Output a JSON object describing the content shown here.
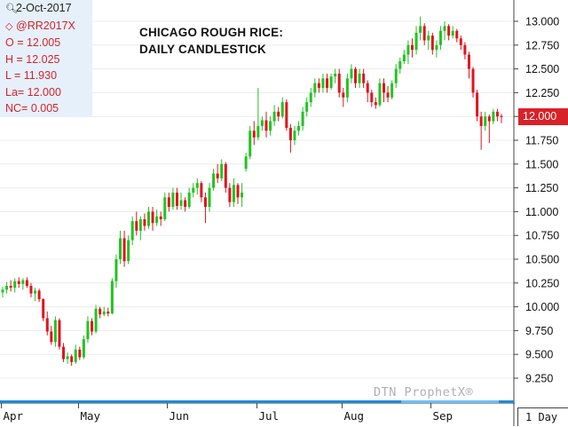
{
  "info_box": {
    "date": "2-Oct-2017",
    "symbol": "@RR2017X",
    "open": "O = 12.005",
    "high": "H = 12.025",
    "low": "L = 11.930",
    "last": "La= 12.000",
    "net_change": "NC= 0.005"
  },
  "watermark": "DTN ProphetX®",
  "price_tag": "12.000",
  "period_label": "1 Day",
  "colors": {
    "up": "#22c322",
    "down": "#e0141e",
    "tag": "#d8222a",
    "axis_highlight": "#69bfff",
    "info_bg": "#e6f0fa"
  },
  "chart_data": {
    "type": "candlestick",
    "title": "CHICAGO ROUGH RICE:",
    "subtitle": "DAILY CANDLESTICK",
    "ylim": [
      9.05,
      13.2
    ],
    "y_ticks": [
      "13.000",
      "12.750",
      "12.500",
      "12.250",
      "12.000",
      "11.750",
      "11.500",
      "11.250",
      "11.000",
      "10.750",
      "10.500",
      "10.250",
      "10.000",
      "9.750",
      "9.500",
      "9.250"
    ],
    "x_ticks": [
      "Apr",
      "May",
      "Jun",
      "Jul",
      "Aug",
      "Sep"
    ],
    "current_price": 12.0,
    "candles": [
      {
        "o": 10.15,
        "h": 10.21,
        "l": 10.1,
        "c": 10.18
      },
      {
        "o": 10.18,
        "h": 10.26,
        "l": 10.14,
        "c": 10.22
      },
      {
        "o": 10.22,
        "h": 10.28,
        "l": 10.16,
        "c": 10.2
      },
      {
        "o": 10.2,
        "h": 10.3,
        "l": 10.15,
        "c": 10.27
      },
      {
        "o": 10.27,
        "h": 10.31,
        "l": 10.2,
        "c": 10.24
      },
      {
        "o": 10.24,
        "h": 10.3,
        "l": 10.18,
        "c": 10.28
      },
      {
        "o": 10.28,
        "h": 10.31,
        "l": 10.2,
        "c": 10.22
      },
      {
        "o": 10.22,
        "h": 10.25,
        "l": 10.1,
        "c": 10.14
      },
      {
        "o": 10.14,
        "h": 10.2,
        "l": 10.06,
        "c": 10.17
      },
      {
        "o": 10.17,
        "h": 10.19,
        "l": 10.05,
        "c": 10.08
      },
      {
        "o": 10.08,
        "h": 10.09,
        "l": 9.85,
        "c": 9.88
      },
      {
        "o": 9.88,
        "h": 9.95,
        "l": 9.7,
        "c": 9.74
      },
      {
        "o": 9.74,
        "h": 9.8,
        "l": 9.6,
        "c": 9.63
      },
      {
        "o": 9.63,
        "h": 9.9,
        "l": 9.58,
        "c": 9.86
      },
      {
        "o": 9.86,
        "h": 9.88,
        "l": 9.55,
        "c": 9.58
      },
      {
        "o": 9.58,
        "h": 9.62,
        "l": 9.42,
        "c": 9.45
      },
      {
        "o": 9.45,
        "h": 9.52,
        "l": 9.4,
        "c": 9.48
      },
      {
        "o": 9.48,
        "h": 9.5,
        "l": 9.38,
        "c": 9.42
      },
      {
        "o": 9.42,
        "h": 9.6,
        "l": 9.4,
        "c": 9.55
      },
      {
        "o": 9.55,
        "h": 9.58,
        "l": 9.44,
        "c": 9.47
      },
      {
        "o": 9.47,
        "h": 9.7,
        "l": 9.45,
        "c": 9.66
      },
      {
        "o": 9.66,
        "h": 9.9,
        "l": 9.62,
        "c": 9.85
      },
      {
        "o": 9.85,
        "h": 9.88,
        "l": 9.7,
        "c": 9.74
      },
      {
        "o": 9.74,
        "h": 10.02,
        "l": 9.72,
        "c": 9.98
      },
      {
        "o": 9.98,
        "h": 10.0,
        "l": 9.88,
        "c": 9.92
      },
      {
        "o": 9.92,
        "h": 10.0,
        "l": 9.9,
        "c": 9.95
      },
      {
        "o": 9.95,
        "h": 9.99,
        "l": 9.9,
        "c": 9.93
      },
      {
        "o": 9.93,
        "h": 10.3,
        "l": 9.92,
        "c": 10.27
      },
      {
        "o": 10.27,
        "h": 10.55,
        "l": 10.2,
        "c": 10.5
      },
      {
        "o": 10.5,
        "h": 10.8,
        "l": 10.45,
        "c": 10.72
      },
      {
        "o": 10.72,
        "h": 10.8,
        "l": 10.42,
        "c": 10.48
      },
      {
        "o": 10.48,
        "h": 10.75,
        "l": 10.45,
        "c": 10.7
      },
      {
        "o": 10.7,
        "h": 10.95,
        "l": 10.65,
        "c": 10.9
      },
      {
        "o": 10.9,
        "h": 11.0,
        "l": 10.75,
        "c": 10.8
      },
      {
        "o": 10.8,
        "h": 10.95,
        "l": 10.7,
        "c": 10.92
      },
      {
        "o": 10.92,
        "h": 10.98,
        "l": 10.8,
        "c": 10.85
      },
      {
        "o": 10.85,
        "h": 11.05,
        "l": 10.82,
        "c": 11.0
      },
      {
        "o": 11.0,
        "h": 11.05,
        "l": 10.8,
        "c": 10.88
      },
      {
        "o": 10.88,
        "h": 11.02,
        "l": 10.85,
        "c": 10.95
      },
      {
        "o": 10.95,
        "h": 11.0,
        "l": 10.85,
        "c": 10.92
      },
      {
        "o": 10.92,
        "h": 11.2,
        "l": 10.9,
        "c": 11.15
      },
      {
        "o": 11.15,
        "h": 11.2,
        "l": 11.0,
        "c": 11.05
      },
      {
        "o": 11.05,
        "h": 11.25,
        "l": 11.02,
        "c": 11.2
      },
      {
        "o": 11.2,
        "h": 11.25,
        "l": 11.02,
        "c": 11.06
      },
      {
        "o": 11.06,
        "h": 11.2,
        "l": 11.02,
        "c": 11.12
      },
      {
        "o": 11.12,
        "h": 11.15,
        "l": 11.0,
        "c": 11.05
      },
      {
        "o": 11.05,
        "h": 11.25,
        "l": 11.03,
        "c": 11.2
      },
      {
        "o": 11.2,
        "h": 11.3,
        "l": 11.15,
        "c": 11.25
      },
      {
        "o": 11.25,
        "h": 11.35,
        "l": 11.18,
        "c": 11.3
      },
      {
        "o": 11.3,
        "h": 11.32,
        "l": 11.1,
        "c": 11.15
      },
      {
        "o": 11.15,
        "h": 11.2,
        "l": 10.88,
        "c": 11.05
      },
      {
        "o": 11.05,
        "h": 11.3,
        "l": 11.0,
        "c": 11.25
      },
      {
        "o": 11.25,
        "h": 11.45,
        "l": 11.22,
        "c": 11.4
      },
      {
        "o": 11.4,
        "h": 11.5,
        "l": 11.3,
        "c": 11.35
      },
      {
        "o": 11.35,
        "h": 11.55,
        "l": 11.32,
        "c": 11.5
      },
      {
        "o": 11.5,
        "h": 11.52,
        "l": 11.2,
        "c": 11.25
      },
      {
        "o": 11.25,
        "h": 11.3,
        "l": 11.05,
        "c": 11.1
      },
      {
        "o": 11.1,
        "h": 11.35,
        "l": 11.05,
        "c": 11.28
      },
      {
        "o": 11.28,
        "h": 11.3,
        "l": 11.08,
        "c": 11.15
      },
      {
        "o": 11.15,
        "h": 11.3,
        "l": 11.05,
        "c": 11.2
      },
      {
        "o": 11.45,
        "h": 11.62,
        "l": 11.42,
        "c": 11.58
      },
      {
        "o": 11.58,
        "h": 11.9,
        "l": 11.55,
        "c": 11.85
      },
      {
        "o": 11.85,
        "h": 11.95,
        "l": 11.7,
        "c": 11.78
      },
      {
        "o": 11.78,
        "h": 12.3,
        "l": 11.75,
        "c": 11.9
      },
      {
        "o": 11.9,
        "h": 12.0,
        "l": 11.85,
        "c": 11.96
      },
      {
        "o": 11.96,
        "h": 12.05,
        "l": 11.78,
        "c": 11.85
      },
      {
        "o": 11.85,
        "h": 12.0,
        "l": 11.8,
        "c": 11.95
      },
      {
        "o": 11.95,
        "h": 12.12,
        "l": 11.9,
        "c": 12.05
      },
      {
        "o": 12.05,
        "h": 12.1,
        "l": 11.95,
        "c": 12.0
      },
      {
        "o": 12.0,
        "h": 12.2,
        "l": 11.98,
        "c": 12.15
      },
      {
        "o": 12.15,
        "h": 12.18,
        "l": 11.85,
        "c": 11.88
      },
      {
        "o": 11.88,
        "h": 11.92,
        "l": 11.62,
        "c": 11.75
      },
      {
        "o": 11.75,
        "h": 11.9,
        "l": 11.7,
        "c": 11.85
      },
      {
        "o": 11.85,
        "h": 11.95,
        "l": 11.8,
        "c": 11.9
      },
      {
        "o": 11.9,
        "h": 12.1,
        "l": 11.85,
        "c": 12.05
      },
      {
        "o": 12.05,
        "h": 12.2,
        "l": 12.0,
        "c": 12.15
      },
      {
        "o": 12.15,
        "h": 12.3,
        "l": 12.1,
        "c": 12.25
      },
      {
        "o": 12.25,
        "h": 12.4,
        "l": 12.2,
        "c": 12.35
      },
      {
        "o": 12.35,
        "h": 12.4,
        "l": 12.25,
        "c": 12.3
      },
      {
        "o": 12.3,
        "h": 12.45,
        "l": 12.25,
        "c": 12.4
      },
      {
        "o": 12.4,
        "h": 12.45,
        "l": 12.25,
        "c": 12.3
      },
      {
        "o": 12.3,
        "h": 12.45,
        "l": 12.28,
        "c": 12.42
      },
      {
        "o": 12.42,
        "h": 12.5,
        "l": 12.35,
        "c": 12.45
      },
      {
        "o": 12.45,
        "h": 12.5,
        "l": 12.2,
        "c": 12.25
      },
      {
        "o": 12.25,
        "h": 12.3,
        "l": 12.1,
        "c": 12.2
      },
      {
        "o": 12.2,
        "h": 12.45,
        "l": 12.15,
        "c": 12.4
      },
      {
        "o": 12.4,
        "h": 12.55,
        "l": 12.35,
        "c": 12.5
      },
      {
        "o": 12.5,
        "h": 12.52,
        "l": 12.3,
        "c": 12.35
      },
      {
        "o": 12.35,
        "h": 12.5,
        "l": 12.3,
        "c": 12.45
      },
      {
        "o": 12.45,
        "h": 12.5,
        "l": 12.3,
        "c": 12.35
      },
      {
        "o": 12.35,
        "h": 12.38,
        "l": 12.15,
        "c": 12.25
      },
      {
        "o": 12.25,
        "h": 12.28,
        "l": 12.1,
        "c": 12.15
      },
      {
        "o": 12.15,
        "h": 12.2,
        "l": 12.08,
        "c": 12.12
      },
      {
        "o": 12.12,
        "h": 12.4,
        "l": 12.1,
        "c": 12.35
      },
      {
        "o": 12.35,
        "h": 12.4,
        "l": 12.15,
        "c": 12.25
      },
      {
        "o": 12.25,
        "h": 12.32,
        "l": 12.15,
        "c": 12.2
      },
      {
        "o": 12.2,
        "h": 12.38,
        "l": 12.18,
        "c": 12.35
      },
      {
        "o": 12.35,
        "h": 12.55,
        "l": 12.3,
        "c": 12.5
      },
      {
        "o": 12.5,
        "h": 12.62,
        "l": 12.45,
        "c": 12.58
      },
      {
        "o": 12.58,
        "h": 12.7,
        "l": 12.55,
        "c": 12.65
      },
      {
        "o": 12.65,
        "h": 12.8,
        "l": 12.55,
        "c": 12.75
      },
      {
        "o": 12.75,
        "h": 12.82,
        "l": 12.62,
        "c": 12.7
      },
      {
        "o": 12.7,
        "h": 12.95,
        "l": 12.65,
        "c": 12.88
      },
      {
        "o": 12.88,
        "h": 13.05,
        "l": 12.8,
        "c": 12.95
      },
      {
        "o": 12.95,
        "h": 12.98,
        "l": 12.75,
        "c": 12.8
      },
      {
        "o": 12.8,
        "h": 12.9,
        "l": 12.7,
        "c": 12.85
      },
      {
        "o": 12.85,
        "h": 12.88,
        "l": 12.65,
        "c": 12.7
      },
      {
        "o": 12.7,
        "h": 12.8,
        "l": 12.62,
        "c": 12.75
      },
      {
        "o": 12.75,
        "h": 12.95,
        "l": 12.7,
        "c": 12.9
      },
      {
        "o": 12.9,
        "h": 13.0,
        "l": 12.8,
        "c": 12.95
      },
      {
        "o": 12.95,
        "h": 12.97,
        "l": 12.8,
        "c": 12.85
      },
      {
        "o": 12.85,
        "h": 12.95,
        "l": 12.82,
        "c": 12.9
      },
      {
        "o": 12.9,
        "h": 12.92,
        "l": 12.78,
        "c": 12.82
      },
      {
        "o": 12.82,
        "h": 12.85,
        "l": 12.7,
        "c": 12.75
      },
      {
        "o": 12.75,
        "h": 12.78,
        "l": 12.6,
        "c": 12.65
      },
      {
        "o": 12.65,
        "h": 12.68,
        "l": 12.4,
        "c": 12.5
      },
      {
        "o": 12.5,
        "h": 12.52,
        "l": 12.2,
        "c": 12.25
      },
      {
        "o": 12.25,
        "h": 12.28,
        "l": 11.95,
        "c": 12.0
      },
      {
        "o": 12.0,
        "h": 12.05,
        "l": 11.65,
        "c": 11.9
      },
      {
        "o": 11.9,
        "h": 12.05,
        "l": 11.85,
        "c": 12.0
      },
      {
        "o": 12.0,
        "h": 12.02,
        "l": 11.72,
        "c": 11.95
      },
      {
        "o": 11.95,
        "h": 12.08,
        "l": 11.92,
        "c": 12.05
      },
      {
        "o": 12.05,
        "h": 12.08,
        "l": 11.95,
        "c": 12.0
      },
      {
        "o": 12.005,
        "h": 12.025,
        "l": 11.93,
        "c": 12.0
      }
    ]
  }
}
